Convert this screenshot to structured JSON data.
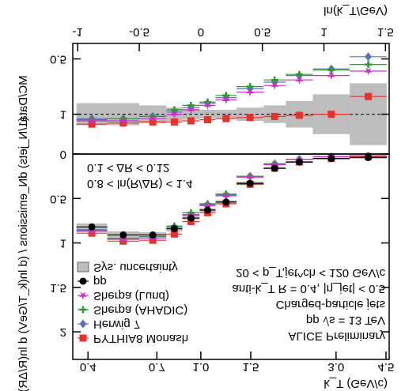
{
  "chart_data": [
    {
      "type": "scatter",
      "y_label": "(1/N_jets) dN_emissions / (d ln(k_T/GeV) d ln(R/ΔR))",
      "x2_label": "k_T (GeV/c)",
      "x2_log": true,
      "x2ticks": [
        0.4,
        0.7,
        {
          "value": 1,
          "label": "1.0"
        },
        1.5,
        {
          "value": 3,
          "label": "3.0"
        },
        4.5
      ],
      "xlim": [
        -1.04,
        1.53
      ],
      "bins": [
        -1.01,
        -0.76,
        -0.5,
        -0.28,
        -0.15,
        -0.01,
        0.12,
        0.29,
        0.51,
        0.69,
        0.91,
        1.21,
        1.51
      ],
      "ylim": [
        0,
        2.31
      ],
      "yticks": [
        0,
        0.5,
        1,
        1.5,
        2
      ],
      "band": {
        "name": "Sys. uncertainty",
        "color": "#bdbdbd",
        "errors": [
          0.04,
          0.04,
          0.03,
          0.03,
          0.02,
          0.02,
          0.02,
          0.02,
          0.01,
          0.01,
          0.01,
          0.01
        ]
      },
      "series": [
        {
          "name": "PYTHIA8 Monash",
          "color": "#e8312b",
          "marker": "square",
          "values": [
            0.89,
            0.98,
            0.97,
            0.9,
            0.76,
            0.66,
            0.56,
            0.34,
            0.16,
            0.09,
            0.05,
            0.03
          ]
        },
        {
          "name": "Herwig 7",
          "color": "#5a6fc9",
          "marker": "diamond",
          "values": [
            0.85,
            0.95,
            0.93,
            0.82,
            0.68,
            0.57,
            0.46,
            0.25,
            0.11,
            0.06,
            0.03,
            0.02
          ]
        },
        {
          "name": "Sherpa (AHADIC)",
          "color": "#2e9a2e",
          "marker": "cross",
          "values": [
            0.86,
            0.95,
            0.93,
            0.81,
            0.66,
            0.56,
            0.45,
            0.25,
            0.11,
            0.06,
            0.03,
            0.02
          ]
        },
        {
          "name": "Sherpa (Lund)",
          "color": "#cc2fcc",
          "marker": "star",
          "values": [
            0.87,
            0.96,
            0.95,
            0.84,
            0.69,
            0.58,
            0.47,
            0.26,
            0.12,
            0.06,
            0.03,
            0.02
          ]
        },
        {
          "name": "pp",
          "color": "#000000",
          "marker": "circle",
          "values": [
            0.82,
            0.91,
            0.91,
            0.84,
            0.72,
            0.63,
            0.54,
            0.33,
            0.16,
            0.09,
            0.05,
            0.04
          ]
        }
      ],
      "annotations": [
        "ALICE Preliminary",
        "pp √s = 13 TeV",
        "Charged-particle jets",
        "anti-k_T R = 0.4, |η_jet| < 0.5",
        "20 < p_T,jet^ch < 120 GeV/c"
      ],
      "selection": [
        "0.8 < ln(R/ΔR) < 1.4",
        "0.1 < ΔR < 0.12"
      ]
    },
    {
      "type": "scatter",
      "y_label": "MC/Data",
      "x_label": "ln(k_T/GeV)",
      "xlim": [
        -1.04,
        1.53
      ],
      "xticks": [
        -1,
        -0.5,
        0,
        0.5,
        1,
        1.5
      ],
      "ylim": [
        0.36,
        1.36
      ],
      "yticks": [
        0.5,
        1
      ],
      "reference": 1,
      "band": {
        "color": "#bdbdbd",
        "errors": [
          0.1,
          0.1,
          0.08,
          0.06,
          0.05,
          0.04,
          0.04,
          0.06,
          0.08,
          0.12,
          0.18,
          0.28
        ]
      },
      "series": [
        {
          "color": "#e8312b",
          "marker": "square",
          "values": [
            1.09,
            1.08,
            1.07,
            1.07,
            1.06,
            1.05,
            1.04,
            1.03,
            1.02,
            1.01,
            1.0,
            0.84
          ]
        },
        {
          "color": "#5a6fc9",
          "marker": "diamond",
          "values": [
            1.04,
            1.04,
            1.02,
            0.98,
            0.94,
            0.9,
            0.85,
            0.77,
            0.71,
            0.65,
            0.59,
            0.48
          ]
        },
        {
          "color": "#2e9a2e",
          "marker": "cross",
          "values": [
            1.05,
            1.04,
            1.02,
            0.96,
            0.92,
            0.89,
            0.83,
            0.75,
            0.69,
            0.64,
            0.6,
            0.55
          ]
        },
        {
          "color": "#cc2fcc",
          "marker": "star",
          "values": [
            1.06,
            1.06,
            1.04,
            1.0,
            0.96,
            0.92,
            0.87,
            0.8,
            0.74,
            0.69,
            0.65,
            0.61
          ]
        }
      ]
    }
  ]
}
